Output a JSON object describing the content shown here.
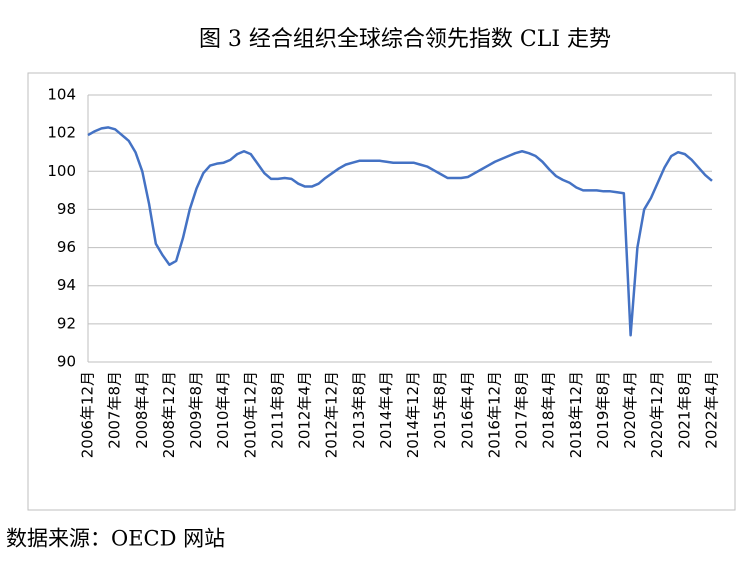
{
  "chart_data": {
    "type": "line",
    "title": "图 3  经合组织全球综合领先指数 CLI 走势",
    "source": "数据来源：OECD 网站",
    "categories": [
      "2006年12月",
      null,
      null,
      null,
      "2007年8月",
      null,
      null,
      null,
      "2008年4月",
      null,
      null,
      null,
      "2008年12月",
      null,
      null,
      null,
      "2009年8月",
      null,
      null,
      null,
      "2010年4月",
      null,
      null,
      null,
      "2010年12月",
      null,
      null,
      null,
      "2011年8月",
      null,
      null,
      null,
      "2012年4月",
      null,
      null,
      null,
      "2012年12月",
      null,
      null,
      null,
      "2013年8月",
      null,
      null,
      null,
      "2014年4月",
      null,
      null,
      null,
      "2014年12月",
      null,
      null,
      null,
      "2015年8月",
      null,
      null,
      null,
      "2016年4月",
      null,
      null,
      null,
      "2016年12月",
      null,
      null,
      null,
      "2017年8月",
      null,
      null,
      null,
      "2018年4月",
      null,
      null,
      null,
      "2018年12月",
      null,
      null,
      null,
      "2019年8月",
      null,
      null,
      null,
      "2020年4月",
      null,
      null,
      null,
      "2020年12月",
      null,
      null,
      null,
      "2021年8月",
      null,
      null,
      null,
      "2022年4月"
    ],
    "values": [
      101.9,
      102.1,
      102.25,
      102.3,
      102.2,
      101.9,
      101.6,
      101.0,
      100.0,
      98.3,
      96.2,
      95.6,
      95.1,
      95.3,
      96.5,
      98.0,
      99.1,
      99.9,
      100.3,
      100.4,
      100.45,
      100.6,
      100.9,
      101.05,
      100.9,
      100.4,
      99.9,
      99.6,
      99.6,
      99.65,
      99.6,
      99.35,
      99.2,
      99.2,
      99.35,
      99.65,
      99.9,
      100.15,
      100.35,
      100.45,
      100.55,
      100.55,
      100.55,
      100.55,
      100.5,
      100.45,
      100.45,
      100.45,
      100.45,
      100.35,
      100.25,
      100.05,
      99.85,
      99.65,
      99.65,
      99.65,
      99.7,
      99.9,
      100.1,
      100.3,
      100.5,
      100.65,
      100.8,
      100.95,
      101.05,
      100.95,
      100.8,
      100.5,
      100.1,
      99.75,
      99.55,
      99.4,
      99.15,
      99.0,
      99.0,
      99.0,
      98.95,
      98.95,
      98.9,
      98.85,
      91.4,
      96.0,
      98.0,
      98.6,
      99.4,
      100.2,
      100.8,
      101.0,
      100.9,
      100.6,
      100.2,
      99.8,
      99.5
    ],
    "color": "#4472c4",
    "ylim": [
      90,
      104
    ],
    "yticks": [
      90,
      92,
      94,
      96,
      98,
      100,
      102,
      104
    ],
    "grid": true
  }
}
